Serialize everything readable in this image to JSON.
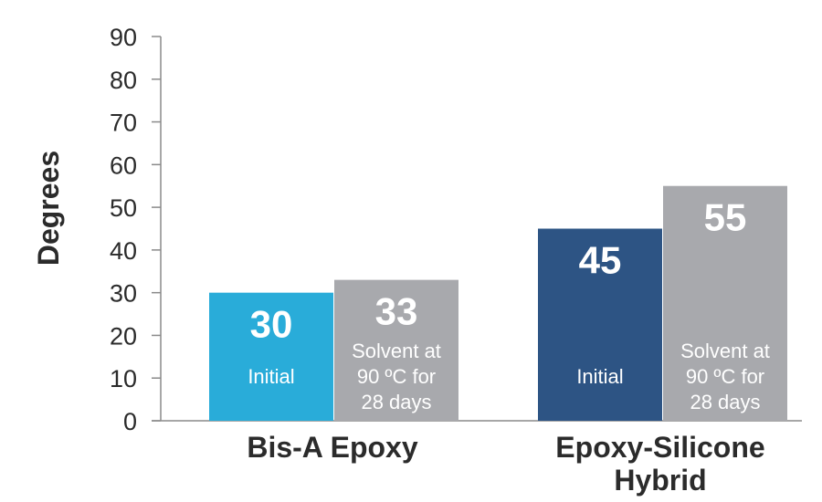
{
  "chart_data": {
    "type": "bar",
    "title": "",
    "ylabel": "Degrees",
    "xlabel": "",
    "ylim": [
      0,
      90
    ],
    "yticks": [
      0,
      10,
      20,
      30,
      40,
      50,
      60,
      70,
      80,
      90
    ],
    "grid": false,
    "legend": "none",
    "categories": [
      {
        "label_lines": [
          "Bis-A Epoxy"
        ]
      },
      {
        "label_lines": [
          "Epoxy-Silicone",
          "Hybrid"
        ]
      }
    ],
    "bars": [
      {
        "category": 0,
        "value": 30,
        "value_label": "30",
        "desc_lines": [
          "Initial"
        ],
        "color": "#29acd9"
      },
      {
        "category": 0,
        "value": 33,
        "value_label": "33",
        "desc_lines": [
          "Solvent at",
          "90 ºC for",
          "28 days"
        ],
        "color": "#a8a9ad"
      },
      {
        "category": 1,
        "value": 45,
        "value_label": "45",
        "desc_lines": [
          "Initial"
        ],
        "color": "#2d5484"
      },
      {
        "category": 1,
        "value": 55,
        "value_label": "55",
        "desc_lines": [
          "Solvent at",
          "90 ºC for",
          "28 days"
        ],
        "color": "#a8a9ad"
      }
    ],
    "axis_color": "#8a8a8a"
  }
}
